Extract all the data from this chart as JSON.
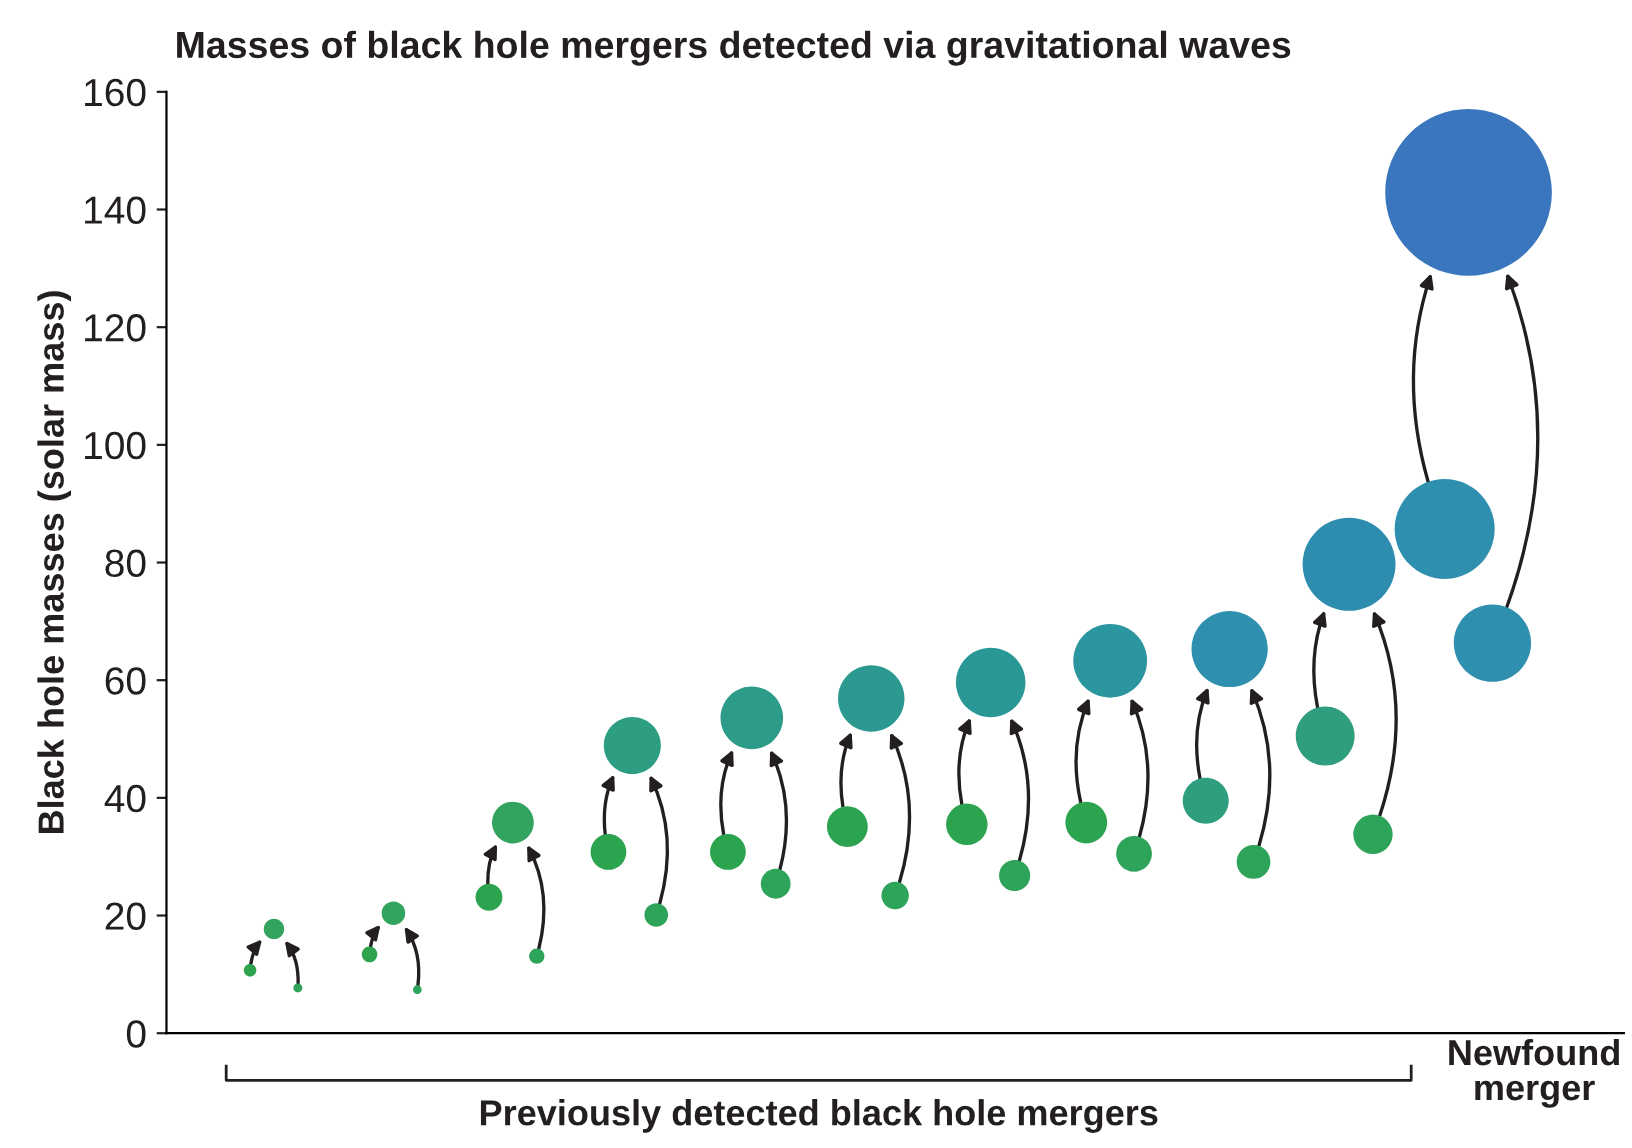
{
  "chart_data": {
    "type": "bubble",
    "title": "Masses of black hole mergers detected via gravitational waves",
    "ylabel": "Black hole masses (solar mass)",
    "categories": [
      null,
      null,
      null,
      null,
      null,
      null,
      null,
      null,
      null,
      null,
      null,
      null,
      null,
      null,
      null,
      null,
      null,
      null,
      null,
      null,
      null,
      null,
      null,
      null,
      null,
      null,
      null,
      null,
      null,
      null,
      null,
      null,
      null,
      null,
      null,
      null,
      null,
      null,
      null,
      null,
      null,
      null,
      null,
      null,
      null,
      null,
      null,
      null,
      null,
      null,
      null,
      null,
      null,
      null,
      null,
      null,
      null,
      null,
      null,
      null,
      null
    ],
    "ylim": [
      0,
      160
    ],
    "yticks": [
      0,
      20,
      40,
      60,
      80,
      100,
      120,
      140,
      160
    ],
    "grid": false,
    "legend": false,
    "series": [
      {
        "values": [
          null,
          null,
          null,
          10.7,
          null,
          null,
          null,
          null,
          13.4,
          null,
          null,
          null,
          null,
          23.1,
          null,
          null,
          null,
          null,
          30.8,
          null,
          null,
          null,
          null,
          30.8,
          null,
          null,
          null,
          null,
          35.1,
          null,
          null,
          null,
          null,
          35.5,
          null,
          null,
          null,
          null,
          35.8,
          null,
          null,
          null,
          null,
          39.5,
          null,
          null,
          null,
          null,
          50.5,
          null,
          null,
          null,
          null,
          85.7,
          null,
          null,
          null,
          null,
          null,
          null,
          null
        ],
        "sizes": [
          null,
          null,
          null,
          0.0056,
          null,
          null,
          null,
          null,
          0.0088,
          null,
          null,
          null,
          null,
          0.026,
          null,
          null,
          null,
          null,
          0.046,
          null,
          null,
          null,
          null,
          0.046,
          null,
          null,
          null,
          null,
          0.06,
          null,
          null,
          null,
          null,
          0.062,
          null,
          null,
          null,
          null,
          0.063,
          null,
          null,
          null,
          null,
          0.076,
          null,
          null,
          null,
          null,
          0.125,
          null,
          null,
          null,
          null,
          0.36,
          null,
          null,
          null,
          null,
          null,
          null,
          null
        ],
        "colors": [
          null,
          null,
          null,
          "#2ea44f",
          null,
          null,
          null,
          null,
          "#2ea44f",
          null,
          null,
          null,
          null,
          "#2ca44f",
          null,
          null,
          null,
          null,
          "#2ca44f",
          null,
          null,
          null,
          null,
          "#2ca44f",
          null,
          null,
          null,
          null,
          "#2ca44f",
          null,
          null,
          null,
          null,
          "#2ca44f",
          null,
          null,
          null,
          null,
          "#2ca44f",
          null,
          null,
          null,
          null,
          "#2e9e7e",
          null,
          null,
          null,
          null,
          "#2e9e7e",
          null,
          null,
          null,
          null,
          "#2e8fae",
          null,
          null,
          null,
          null,
          null,
          null,
          null
        ]
      },
      {
        "values": [
          null,
          null,
          null,
          null,
          17.7,
          null,
          null,
          null,
          null,
          20.4,
          null,
          null,
          null,
          null,
          35.8,
          null,
          null,
          null,
          null,
          48.9,
          null,
          null,
          null,
          null,
          53.6,
          null,
          null,
          null,
          null,
          56.9,
          null,
          null,
          null,
          null,
          59.6,
          null,
          null,
          null,
          null,
          63.3,
          null,
          null,
          null,
          null,
          65.3,
          null,
          null,
          null,
          null,
          79.7,
          null,
          null,
          null,
          null,
          142.9,
          null,
          null,
          null,
          null,
          null,
          null
        ],
        "sizes": [
          null,
          null,
          null,
          null,
          0.015,
          null,
          null,
          null,
          null,
          0.02,
          null,
          null,
          null,
          null,
          0.063,
          null,
          null,
          null,
          null,
          0.117,
          null,
          null,
          null,
          null,
          0.141,
          null,
          null,
          null,
          null,
          0.159,
          null,
          null,
          null,
          null,
          0.174,
          null,
          null,
          null,
          null,
          0.196,
          null,
          null,
          null,
          null,
          0.209,
          null,
          null,
          null,
          null,
          0.311,
          null,
          null,
          null,
          null,
          1,
          null,
          null,
          null,
          null,
          null,
          null
        ],
        "colors": [
          null,
          null,
          null,
          null,
          "#32a460",
          null,
          null,
          null,
          null,
          "#32a460",
          null,
          null,
          null,
          null,
          "#32a460",
          null,
          null,
          null,
          null,
          "#2e9e82",
          null,
          null,
          null,
          null,
          "#2c9b88",
          null,
          null,
          null,
          null,
          "#2b9990",
          null,
          null,
          null,
          null,
          "#2a9797",
          null,
          null,
          null,
          null,
          "#2b95a0",
          null,
          null,
          null,
          null,
          "#2e8fae",
          null,
          null,
          null,
          null,
          "#2e8dae",
          null,
          null,
          null,
          null,
          "#3a76bd",
          null,
          null,
          null,
          null,
          null,
          null
        ]
      },
      {
        "values": [
          null,
          null,
          null,
          null,
          null,
          7.7,
          null,
          null,
          null,
          null,
          7.4,
          null,
          null,
          null,
          null,
          13.1,
          null,
          null,
          null,
          null,
          20.1,
          null,
          null,
          null,
          null,
          25.4,
          null,
          null,
          null,
          null,
          23.4,
          null,
          null,
          null,
          null,
          26.8,
          null,
          null,
          null,
          null,
          30.5,
          null,
          null,
          null,
          null,
          29.1,
          null,
          null,
          null,
          null,
          33.8,
          null,
          null,
          null,
          null,
          66.3,
          null,
          null,
          null,
          null,
          null
        ],
        "sizes": [
          null,
          null,
          null,
          null,
          null,
          0.0029,
          null,
          null,
          null,
          null,
          0.0027,
          null,
          null,
          null,
          null,
          0.0084,
          null,
          null,
          null,
          null,
          0.02,
          null,
          null,
          null,
          null,
          0.032,
          null,
          null,
          null,
          null,
          0.027,
          null,
          null,
          null,
          null,
          0.035,
          null,
          null,
          null,
          null,
          0.046,
          null,
          null,
          null,
          null,
          0.041,
          null,
          null,
          null,
          null,
          0.056,
          null,
          null,
          null,
          null,
          0.215,
          null,
          null,
          null,
          null,
          null
        ],
        "colors": [
          null,
          null,
          null,
          null,
          null,
          "#2ea45a",
          null,
          null,
          null,
          null,
          "#2ea45a",
          null,
          null,
          null,
          null,
          "#2ea45a",
          null,
          null,
          null,
          null,
          "#2ea45a",
          null,
          null,
          null,
          null,
          "#2ea45a",
          null,
          null,
          null,
          null,
          "#2ea45a",
          null,
          null,
          null,
          null,
          "#2ea45a",
          null,
          null,
          null,
          null,
          "#2ea45a",
          null,
          null,
          null,
          null,
          "#2ea45a",
          null,
          null,
          null,
          null,
          "#2ea45a",
          null,
          null,
          null,
          null,
          "#2e8fae",
          null,
          null,
          null,
          null,
          null
        ]
      }
    ],
    "annotations": [
      "Previously detected black hole mergers",
      "Newfound\nmerger"
    ]
  }
}
